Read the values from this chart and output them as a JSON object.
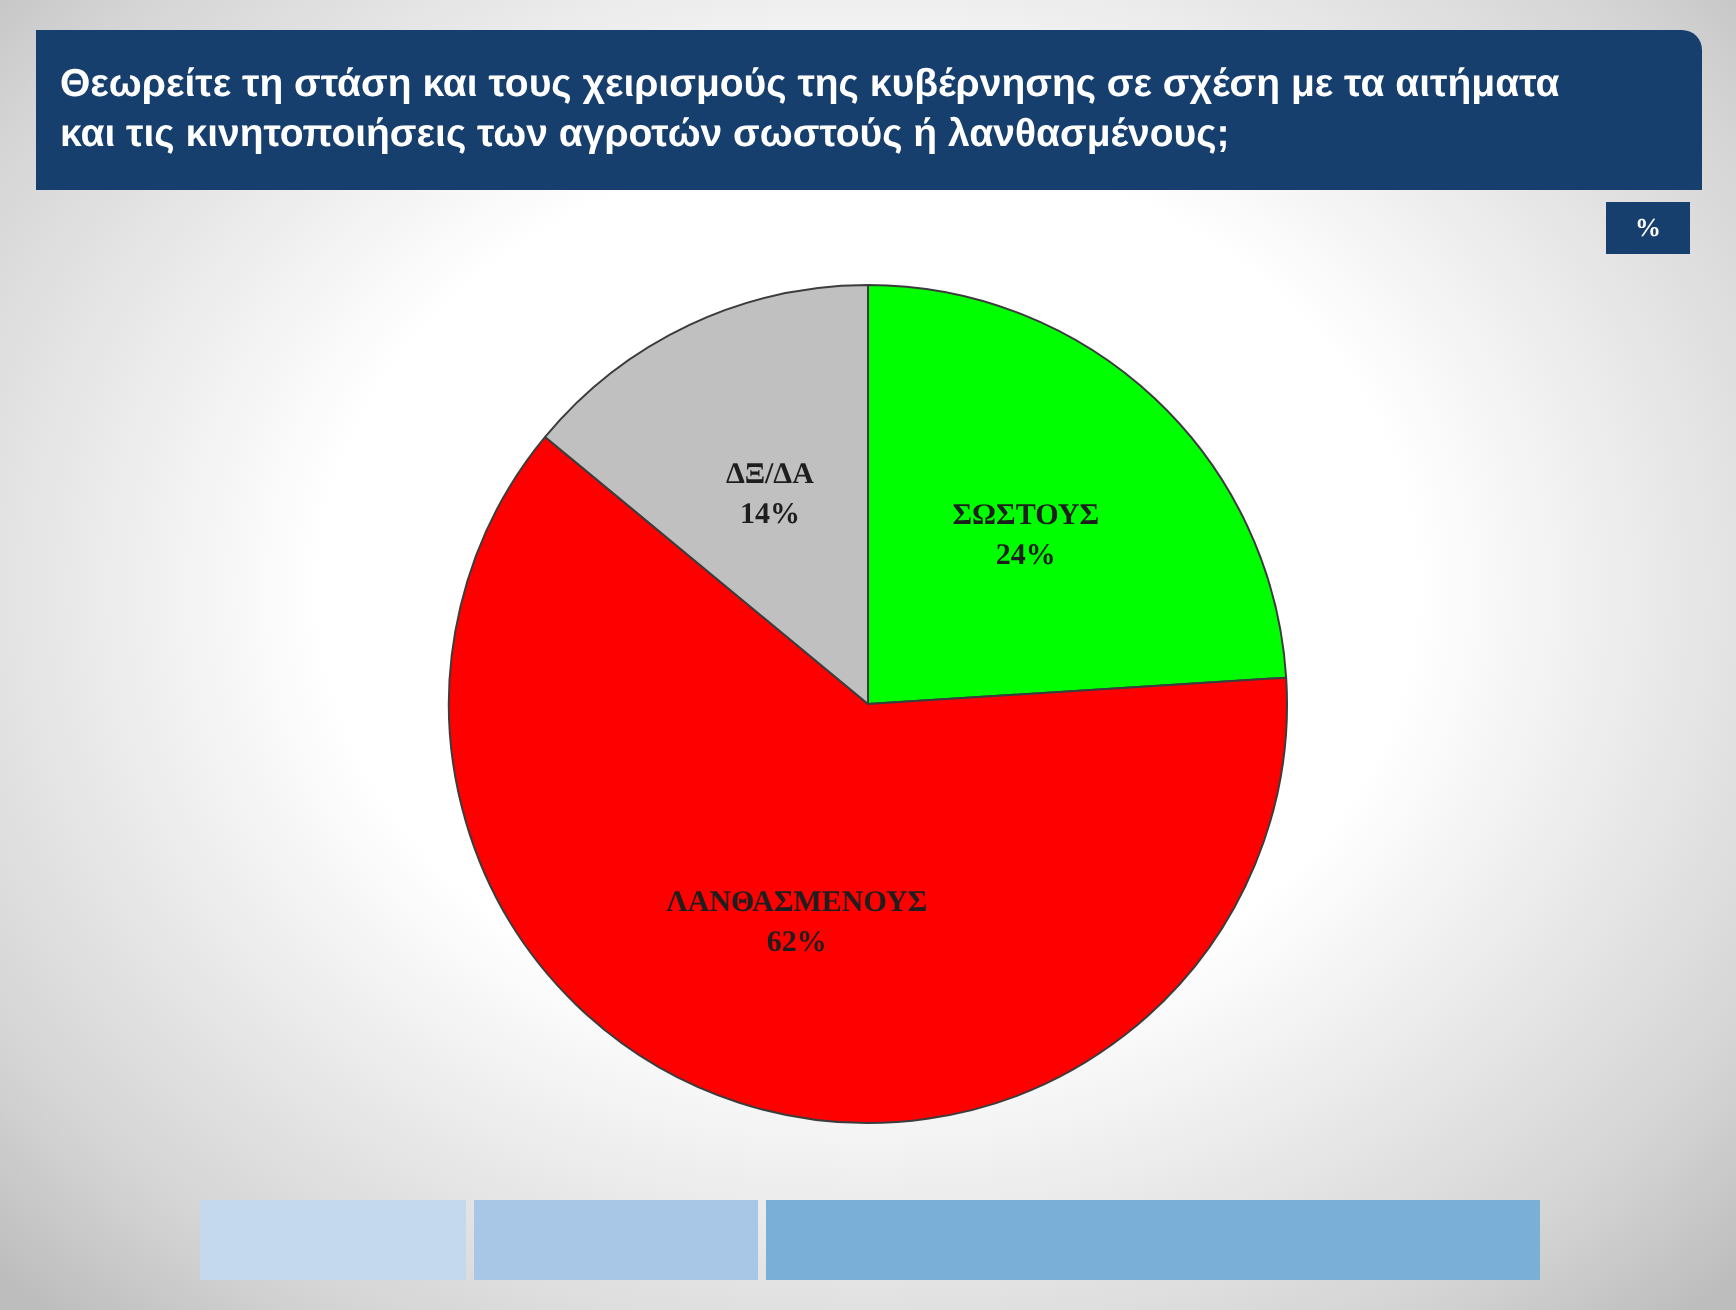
{
  "chart_data": {
    "type": "pie",
    "title": "Θεωρείτε τη στάση και τους χειρισμούς της κυβέρνησης σε σχέση με τα αιτήματα και τις κινητοποιήσεις των αγροτών σωστούς ή λανθασμένους;",
    "categories": [
      "ΣΩΣΤΟΥΣ",
      "ΛΑΝΘΑΣΜΕΝΟΥΣ",
      "ΔΞ/ΔΑ"
    ],
    "values": [
      24,
      62,
      14
    ],
    "value_labels": [
      "24%",
      "62%",
      "14%"
    ],
    "colors": [
      "#00ff00",
      "#ff0000",
      "#c0c0c0"
    ],
    "annotations": [
      "%"
    ],
    "legend": false
  }
}
